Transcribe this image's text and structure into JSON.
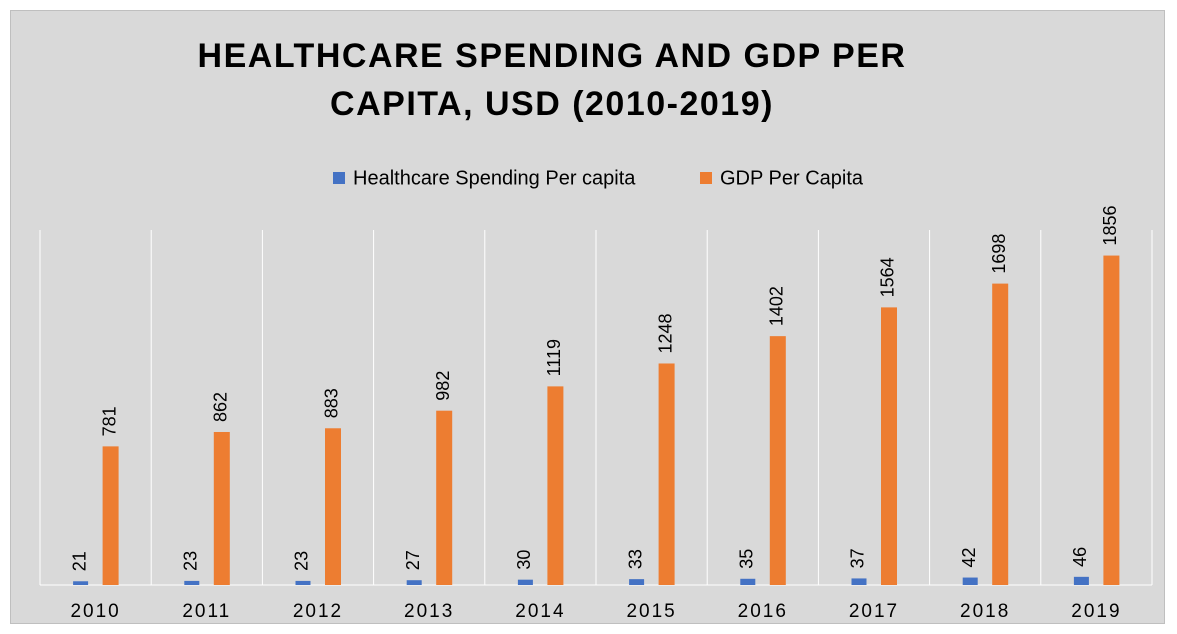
{
  "chart_data": {
    "type": "bar",
    "title": "HEALTHCARE SPENDING AND GDP PER CAPITA, USD (2010-2019)",
    "categories": [
      "2010",
      "2011",
      "2012",
      "2013",
      "2014",
      "2015",
      "2016",
      "2017",
      "2018",
      "2019"
    ],
    "series": [
      {
        "name": "Healthcare Spending Per capita",
        "color": "#4472c4",
        "values": [
          21,
          23,
          23,
          27,
          30,
          33,
          35,
          37,
          42,
          46
        ]
      },
      {
        "name": "GDP Per Capita",
        "color": "#ed7d31",
        "values": [
          781,
          862,
          883,
          982,
          1119,
          1248,
          1402,
          1564,
          1698,
          1856
        ]
      }
    ],
    "ylim": [
      0,
      2000
    ],
    "legend": "top"
  }
}
